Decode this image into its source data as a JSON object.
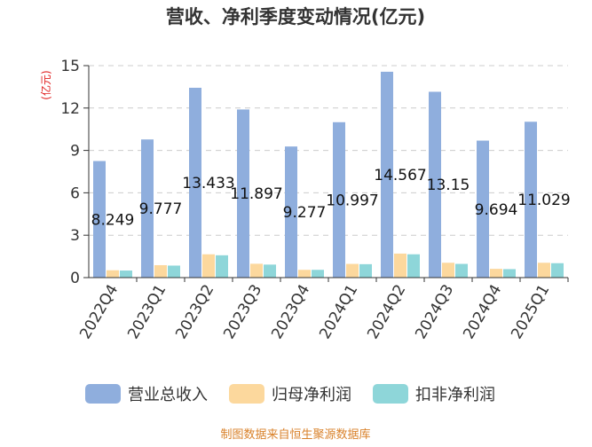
{
  "chart_data": {
    "type": "bar",
    "title": "营收、净利季度变动情况(亿元)",
    "ylabel": "(亿元)",
    "xlabel": "",
    "ylim": [
      0,
      15
    ],
    "yticks": [
      0,
      3,
      6,
      9,
      12,
      15
    ],
    "grid": true,
    "legend_position": "bottom",
    "categories": [
      "2022Q4",
      "2023Q1",
      "2023Q2",
      "2023Q3",
      "2023Q4",
      "2024Q1",
      "2024Q2",
      "2024Q3",
      "2024Q4",
      "2025Q1"
    ],
    "series": [
      {
        "name": "营业总收入",
        "color": "#8FAEDD",
        "values": [
          8.249,
          9.777,
          13.433,
          11.897,
          9.277,
          10.997,
          14.567,
          13.15,
          9.694,
          11.029
        ],
        "labels": [
          "8.249",
          "9.777",
          "13.433",
          "11.897",
          "9.277",
          "10.997",
          "14.567",
          "13.15",
          "9.694",
          "11.029"
        ]
      },
      {
        "name": "归母净利润",
        "color": "#FCD89D",
        "values": [
          0.52,
          0.88,
          1.65,
          0.98,
          0.55,
          0.97,
          1.7,
          1.05,
          0.62,
          1.05
        ]
      },
      {
        "name": "扣非净利润",
        "color": "#8ED6D9",
        "values": [
          0.5,
          0.85,
          1.58,
          0.92,
          0.55,
          0.95,
          1.65,
          0.97,
          0.6,
          1.02
        ]
      }
    ],
    "source": "制图数据来自恒生聚源数据库"
  },
  "colors": {
    "title": "#333333",
    "ylabel": "#e02020",
    "grid": "#cccccc",
    "axis": "#333333",
    "source": "#d9822b"
  }
}
